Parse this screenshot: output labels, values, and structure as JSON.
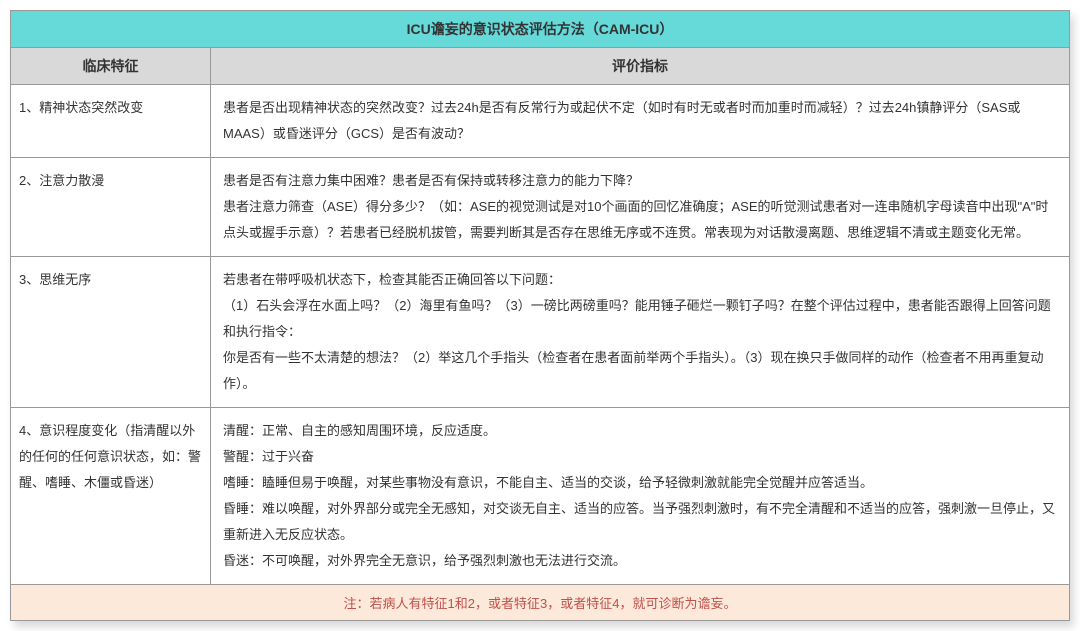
{
  "colors": {
    "title_bg": "#66d9d9",
    "header_bg": "#d9d9d9",
    "note_bg": "#fde9d9",
    "note_text": "#c0504d",
    "border": "#999999"
  },
  "title": "ICU谵妄的意识状态评估方法（CAM-ICU）",
  "headers": {
    "left": "临床特征",
    "right": "评价指标"
  },
  "rows": [
    {
      "feature": "1、精神状态突然改变",
      "criteria": "患者是否出现精神状态的突然改变？过去24h是否有反常行为或起伏不定（如时有时无或者时而加重时而减轻）？过去24h镇静评分（SAS或MAAS）或昏迷评分（GCS）是否有波动？"
    },
    {
      "feature": "2、注意力散漫",
      "criteria": "患者是否有注意力集中困难？患者是否有保持或转移注意力的能力下降？\n患者注意力筛查（ASE）得分多少？（如：ASE的视觉测试是对10个画面的回忆准确度；ASE的听觉测试患者对一连串随机字母读音中出现\"A\"时点头或握手示意）？若患者已经脱机拔管，需要判断其是否存在思维无序或不连贯。常表现为对话散漫离题、思维逻辑不清或主题变化无常。"
    },
    {
      "feature": "3、思维无序",
      "criteria": "若患者在带呼吸机状态下，检查其能否正确回答以下问题：\n（1）石头会浮在水面上吗？（2）海里有鱼吗？（3）一磅比两磅重吗？能用锤子砸烂一颗钉子吗？在整个评估过程中，患者能否跟得上回答问题和执行指令：\n你是否有一些不太清楚的想法？（2）举这几个手指头（检查者在患者面前举两个手指头）。（3）现在换只手做同样的动作（检查者不用再重复动作）。"
    },
    {
      "feature": "4、意识程度变化（指清醒以外的任何的任何意识状态，如：警醒、嗜睡、木僵或昏迷）",
      "criteria": "清醒：正常、自主的感知周围环境，反应适度。\n警醒：过于兴奋\n嗜睡：瞌睡但易于唤醒，对某些事物没有意识，不能自主、适当的交谈，给予轻微刺激就能完全觉醒并应答适当。\n昏睡：难以唤醒，对外界部分或完全无感知，对交谈无自主、适当的应答。当予强烈刺激时，有不完全清醒和不适当的应答，强刺激一旦停止，又重新进入无反应状态。\n昏迷：不可唤醒，对外界完全无意识，给予强烈刺激也无法进行交流。"
    }
  ],
  "note": "注：若病人有特征1和2，或者特征3，或者特征4，就可诊断为谵妄。"
}
